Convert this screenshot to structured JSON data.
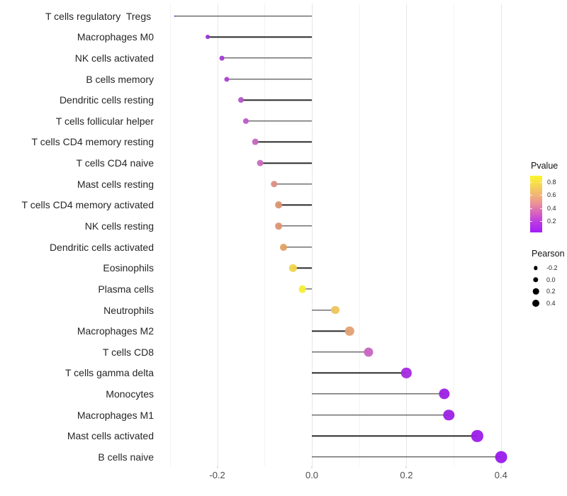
{
  "chart_data": {
    "type": "lollipop",
    "title": "",
    "xlabel": "",
    "ylabel": "",
    "xlim": [
      -0.328,
      0.436
    ],
    "x_ticks": [
      -0.2,
      0.0,
      0.2,
      0.4
    ],
    "x_tick_labels": [
      "-0.2",
      "0.0",
      "0.2",
      "0.4"
    ],
    "x_minor_ticks": [
      -0.3,
      -0.1,
      0.1,
      0.3
    ],
    "grid": "vertical major+minor, light gray, no panel border",
    "baseline": 0.0,
    "points": [
      {
        "label": "T cells regulatory  Tregs ",
        "pearson": -0.29,
        "color": "#7d2ac9"
      },
      {
        "label": "Macrophages M0",
        "pearson": -0.22,
        "color": "#9c31d7"
      },
      {
        "label": "NK cells activated",
        "pearson": -0.19,
        "color": "#a43ad3"
      },
      {
        "label": "B cells memory",
        "pearson": -0.18,
        "color": "#a944d0"
      },
      {
        "label": "Dendritic cells resting",
        "pearson": -0.15,
        "color": "#b554ca"
      },
      {
        "label": "T cells follicular helper",
        "pearson": -0.14,
        "color": "#ba5bc7"
      },
      {
        "label": "T cells CD4 memory resting",
        "pearson": -0.12,
        "color": "#c569bf"
      },
      {
        "label": "T cells CD4 naive",
        "pearson": -0.11,
        "color": "#c76dbd"
      },
      {
        "label": "Mast cells resting",
        "pearson": -0.08,
        "color": "#de8d83"
      },
      {
        "label": "T cells CD4 memory activated",
        "pearson": -0.07,
        "color": "#dc9472"
      },
      {
        "label": "NK cells resting",
        "pearson": -0.07,
        "color": "#dc9472"
      },
      {
        "label": "Dendritic cells activated",
        "pearson": -0.06,
        "color": "#e1a163"
      },
      {
        "label": "Eosinophils",
        "pearson": -0.04,
        "color": "#f0d64c"
      },
      {
        "label": "Plasma cells",
        "pearson": -0.02,
        "color": "#f7ee34"
      },
      {
        "label": "Neutrophils",
        "pearson": 0.05,
        "color": "#efc45c"
      },
      {
        "label": "Macrophages M2",
        "pearson": 0.08,
        "color": "#e3a073"
      },
      {
        "label": "T cells CD8",
        "pearson": 0.12,
        "color": "#c864c1"
      },
      {
        "label": "T cells gamma delta",
        "pearson": 0.2,
        "color": "#a529e1"
      },
      {
        "label": "Monocytes",
        "pearson": 0.28,
        "color": "#9d20e5"
      },
      {
        "label": "Macrophages M1",
        "pearson": 0.29,
        "color": "#9d20e5"
      },
      {
        "label": "Mast cells activated",
        "pearson": 0.35,
        "color": "#9b1de9"
      },
      {
        "label": "B cells naive",
        "pearson": 0.4,
        "color": "#991aec"
      }
    ],
    "legends": {
      "pvalue": {
        "title": "Pvalue",
        "tick_labels": [
          "0.8",
          "0.6",
          "0.4",
          "0.2"
        ],
        "gradient_top_to_bottom": [
          "#fbf62c",
          "#f6d456",
          "#f0ab7e",
          "#ea8f9b",
          "#d863bd",
          "#bc3ae4",
          "#a21df6"
        ]
      },
      "pearson": {
        "title": "Pearson",
        "entries": [
          {
            "label": "-0.2",
            "radius": 2.7
          },
          {
            "label": "0.0",
            "radius": 3.7
          },
          {
            "label": "0.2",
            "radius": 4.3
          },
          {
            "label": "0.4",
            "radius": 5.0
          }
        ],
        "dot_color": "#000000"
      }
    },
    "style_colors": {
      "stem": "#2b2b2b",
      "grid_major": "#e7e7e7",
      "grid_minor": "#f3f3f3",
      "axis_text": "#4d4d4d",
      "label_text": "#262626",
      "background": "#ffffff"
    }
  }
}
